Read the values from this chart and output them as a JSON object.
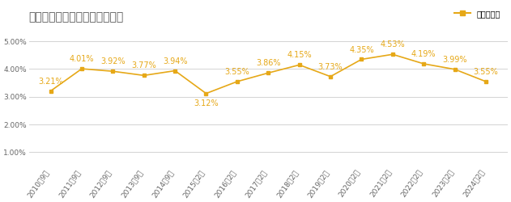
{
  "title": "ウエルシアの営業利益率の推移",
  "legend_label": "営業利益率",
  "categories": [
    "2010年9月",
    "2011年9月",
    "2012年9月",
    "2013年9月",
    "2014年9月",
    "2015年2月",
    "2016年2月",
    "2017年2月",
    "2018年2月",
    "2019年2月",
    "2020年2月",
    "2021年2月",
    "2022年2月",
    "2023年2月",
    "2024年2月"
  ],
  "values": [
    3.21,
    4.01,
    3.92,
    3.77,
    3.94,
    3.12,
    3.55,
    3.86,
    4.15,
    3.73,
    4.35,
    4.53,
    4.19,
    3.99,
    3.55
  ],
  "line_color": "#E6A817",
  "marker_color": "#E6A817",
  "background_color": "#ffffff",
  "grid_color": "#cccccc",
  "title_fontsize": 10,
  "label_fontsize": 7,
  "tick_fontsize": 6.5,
  "legend_fontsize": 7,
  "ylim": [
    0.5,
    5.5
  ],
  "yticks": [
    1.0,
    2.0,
    3.0,
    4.0,
    5.0
  ],
  "ytick_labels": [
    "1.00%",
    "2.00%",
    "3.00%",
    "4.00%",
    "5.00%"
  ]
}
